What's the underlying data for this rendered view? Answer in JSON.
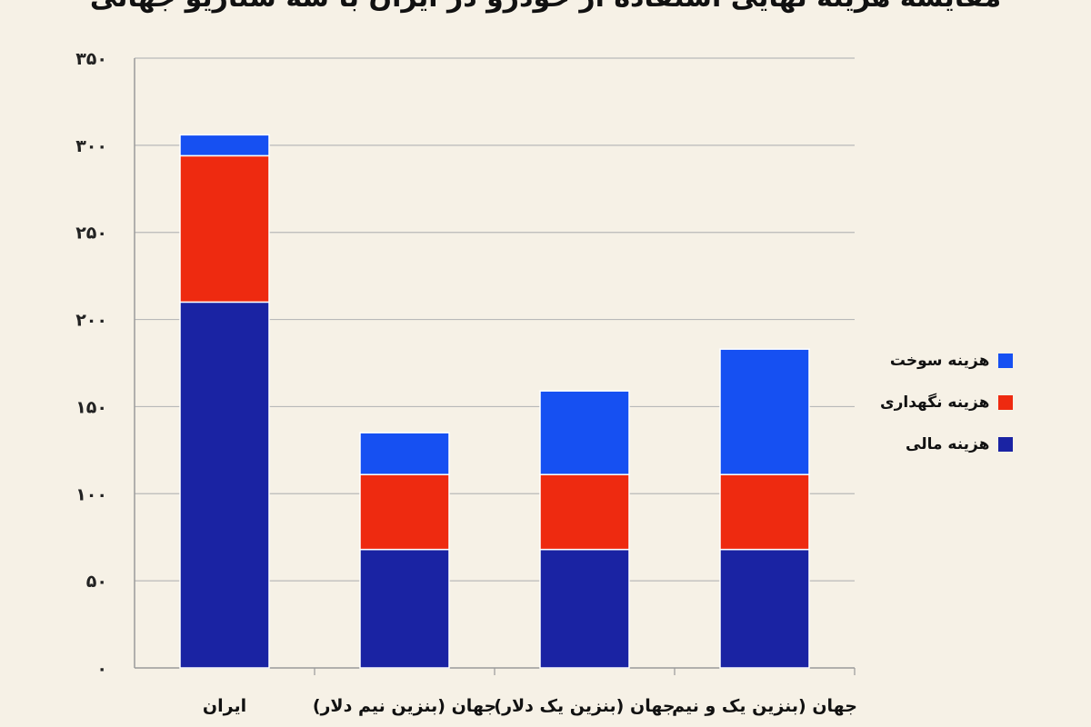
{
  "chart_data": {
    "type": "bar",
    "stacked": true,
    "title": "مقایسه هزینه نهایی استفاده از خودرو در ایران با سه سناریو جهانی",
    "categories": [
      "ایران",
      "جهان (بنزین نیم دلار)",
      "جهان (بنزین یک دلار)",
      "جهان (بنزین یک و نیم"
    ],
    "series": [
      {
        "name": "هزینه مالی",
        "color": "#1a23a3",
        "values": [
          210,
          68,
          68,
          68
        ]
      },
      {
        "name": "هزینه نگهداری",
        "color": "#ee2a10",
        "values": [
          84,
          43,
          43,
          43
        ]
      },
      {
        "name": "هزینه سوخت",
        "color": "#1650f2",
        "values": [
          12,
          24,
          48,
          72
        ]
      }
    ],
    "ylim": [
      0,
      350
    ],
    "yticks": [
      "۰",
      "۵۰",
      "۱۰۰",
      "۱۵۰",
      "۲۰۰",
      "۲۵۰",
      "۳۰۰",
      "۳۵۰"
    ],
    "grid": true,
    "legend_position": "right"
  }
}
